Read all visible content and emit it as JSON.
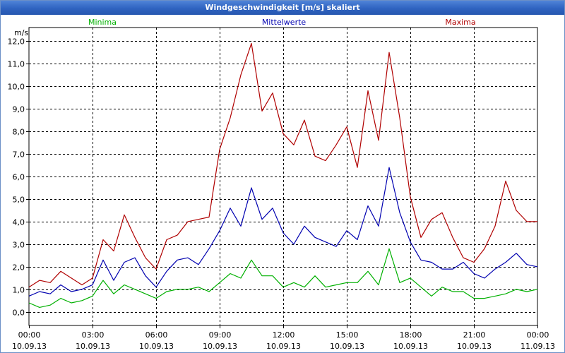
{
  "window": {
    "title": "Windgeschwindigkeit [m/s] skaliert"
  },
  "colors": {
    "min": "#00b000",
    "mean": "#0000b0",
    "max": "#b00000",
    "grid": "#000000"
  },
  "chart_data": {
    "type": "line",
    "title": "Windgeschwindigkeit [m/s] skaliert",
    "ylabel": "m/s",
    "xlabel": "",
    "ylim": [
      -0.6,
      12.6
    ],
    "yticks": [
      0,
      1,
      2,
      3,
      4,
      5,
      6,
      7,
      8,
      9,
      10,
      11,
      12
    ],
    "ytick_labels": [
      "0,0",
      "1,0",
      "2,0",
      "3,0",
      "4,0",
      "5,0",
      "6,0",
      "7,0",
      "8,0",
      "9,0",
      "10,0",
      "11,0",
      "12,0"
    ],
    "xlim": [
      0,
      24
    ],
    "xticks": [
      {
        "pos": 0,
        "time": "00:00",
        "date": "10.09.13"
      },
      {
        "pos": 3,
        "time": "03:00",
        "date": "10.09.13"
      },
      {
        "pos": 6,
        "time": "06:00",
        "date": "10.09.13"
      },
      {
        "pos": 9,
        "time": "09:00",
        "date": "10.09.13"
      },
      {
        "pos": 12,
        "time": "12:00",
        "date": "10.09.13"
      },
      {
        "pos": 15,
        "time": "15:00",
        "date": "10.09.13"
      },
      {
        "pos": 18,
        "time": "18:00",
        "date": "10.09.13"
      },
      {
        "pos": 21,
        "time": "21:00",
        "date": "10.09.13"
      },
      {
        "pos": 24,
        "time": "00:00",
        "date": "11.09.13"
      }
    ],
    "x_hours": [
      0,
      0.5,
      1,
      1.5,
      2,
      2.5,
      3,
      3.5,
      4,
      4.5,
      5,
      5.5,
      6,
      6.5,
      7,
      7.5,
      8,
      8.5,
      9,
      9.5,
      10,
      10.5,
      11,
      11.5,
      12,
      12.5,
      13,
      13.5,
      14,
      14.5,
      15,
      15.5,
      16,
      16.5,
      17,
      17.5,
      18,
      18.5,
      19,
      19.5,
      20,
      20.5,
      21,
      21.5,
      22,
      22.5,
      23,
      23.5,
      24
    ],
    "series": [
      {
        "name": "Minima",
        "key": "min",
        "values": [
          0.4,
          0.2,
          0.3,
          0.6,
          0.4,
          0.5,
          0.7,
          1.4,
          0.8,
          1.2,
          1.0,
          0.8,
          0.6,
          0.9,
          1.0,
          1.0,
          1.1,
          0.9,
          1.3,
          1.7,
          1.5,
          2.3,
          1.6,
          1.6,
          1.1,
          1.3,
          1.1,
          1.6,
          1.1,
          1.2,
          1.3,
          1.3,
          1.8,
          1.2,
          2.8,
          1.3,
          1.5,
          1.1,
          0.7,
          1.1,
          0.9,
          0.9,
          0.6,
          0.6,
          0.7,
          0.8,
          1.0,
          0.9,
          1.0
        ]
      },
      {
        "name": "Mittelwerte",
        "key": "mean",
        "values": [
          0.7,
          0.9,
          0.8,
          1.2,
          0.9,
          1.0,
          1.2,
          2.3,
          1.4,
          2.2,
          2.4,
          1.6,
          1.1,
          1.8,
          2.3,
          2.4,
          2.1,
          2.8,
          3.6,
          4.6,
          3.8,
          5.5,
          4.1,
          4.6,
          3.5,
          3.0,
          3.8,
          3.3,
          3.1,
          2.9,
          3.6,
          3.2,
          4.7,
          3.8,
          6.4,
          4.4,
          3.1,
          2.3,
          2.2,
          1.9,
          1.9,
          2.2,
          1.7,
          1.5,
          1.9,
          2.2,
          2.6,
          2.1,
          2.0
        ]
      },
      {
        "name": "Maxima",
        "key": "max",
        "values": [
          1.1,
          1.4,
          1.3,
          1.8,
          1.5,
          1.2,
          1.5,
          3.2,
          2.7,
          4.3,
          3.3,
          2.4,
          1.9,
          3.2,
          3.4,
          4.0,
          4.1,
          4.2,
          7.2,
          8.6,
          10.5,
          11.9,
          8.9,
          9.7,
          7.9,
          7.4,
          8.5,
          6.9,
          6.7,
          7.4,
          8.2,
          6.4,
          9.8,
          7.6,
          11.5,
          8.6,
          5.1,
          3.3,
          4.1,
          4.4,
          3.3,
          2.4,
          2.2,
          2.8,
          3.8,
          5.8,
          4.5,
          4.0,
          4.0
        ]
      }
    ]
  }
}
